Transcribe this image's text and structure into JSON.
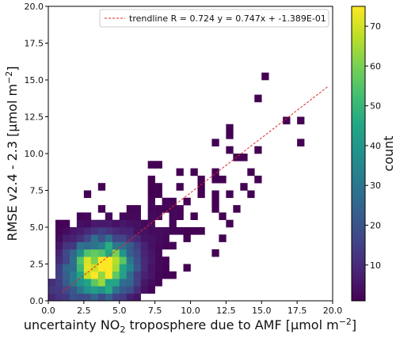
{
  "chart_data": {
    "type": "heatmap",
    "subtype": "2d-histogram",
    "title": "",
    "xlabel": {
      "before": "uncertainty NO",
      "sub": "2",
      "after": " troposphere due to AMF [µmol m",
      "sup": "−2",
      "end": "]"
    },
    "ylabel": {
      "before": "RMSE v2.4 - 2.3 [µmol m",
      "sup": "−2",
      "end": "]"
    },
    "xlim": [
      0,
      20
    ],
    "ylim": [
      0,
      20
    ],
    "bin_size": 0.5,
    "x_ticks": [
      0.0,
      2.5,
      5.0,
      7.5,
      10.0,
      12.5,
      15.0,
      17.5,
      20.0
    ],
    "x_tick_labels": [
      "0.0",
      "2.5",
      "5.0",
      "7.5",
      "10.0",
      "12.5",
      "15.0",
      "17.5",
      "20.0"
    ],
    "y_ticks": [
      0.0,
      2.5,
      5.0,
      7.5,
      10.0,
      12.5,
      15.0,
      17.5,
      20.0
    ],
    "y_tick_labels": [
      "0.0",
      "2.5",
      "5.0",
      "7.5",
      "10.0",
      "12.5",
      "15.0",
      "17.5",
      "20.0"
    ],
    "colormap": "viridis",
    "colorbar": {
      "label": "count",
      "range": [
        1,
        75
      ],
      "ticks": [
        10,
        20,
        30,
        40,
        50,
        60,
        70
      ],
      "tick_labels": [
        "10",
        "20",
        "30",
        "40",
        "50",
        "60",
        "70"
      ]
    },
    "density_model": {
      "peak_count": 74,
      "peak_x": 3.8,
      "peak_y": 2.3,
      "core_spread_x": 1.4,
      "core_spread_y": 1.2,
      "halo_peak_count": 10,
      "halo_spread": 4.0,
      "note_trend_slope": 0.747
    },
    "trendline": {
      "label": "trendline R = 0.724 y = 0.747x + -1.389E-01",
      "slope": 0.747,
      "intercept": -0.1389,
      "x_range": [
        1.0,
        19.7
      ],
      "color": "#e32626",
      "style": "dashed"
    },
    "legend_position": "top-right",
    "grid": false
  }
}
